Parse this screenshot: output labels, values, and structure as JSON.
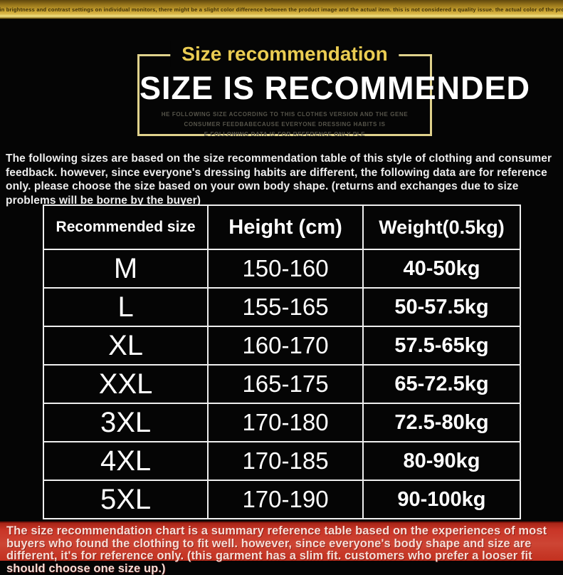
{
  "top_banner": {
    "disclaimer": "Due to variations in brightness and contrast settings on individual monitors, there might be a slight color difference between the product image and the actual item. this is not considered a quality issue. the actual color of the product shall prevail"
  },
  "header": {
    "badge_title": "Size recommendation",
    "main_title": "SIZE IS RECOMMENDED",
    "caption_lines": [
      "HE FOLLOWING SIZE ACCORDING TO THIS CLOTHES VERSION AND THE GENE",
      "CONSUMER FEEDBABECAUSE EVERYONE DRESSING HABITS IS",
      "E FOLLOWING DATA IS FOR REFERENCE ONLY PLE"
    ]
  },
  "intro_paragraph": "The following sizes are based on the size recommendation table of this style of clothing and consumer feedback. however, since everyone's dressing habits are different, the following data are for reference only. please choose the size based on your own body shape. (returns and exchanges due to size problems will be borne by the buyer)",
  "size_table": {
    "columns": [
      "Recommended size",
      "Height (cm)",
      "Weight(0.5kg)"
    ],
    "rows": [
      {
        "size": "M",
        "height": "150-160",
        "weight": "40-50kg"
      },
      {
        "size": "L",
        "height": "155-165",
        "weight": "50-57.5kg"
      },
      {
        "size": "XL",
        "height": "160-170",
        "weight": "57.5-65kg"
      },
      {
        "size": "XXL",
        "height": "165-175",
        "weight": "65-72.5kg"
      },
      {
        "size": "3XL",
        "height": "170-180",
        "weight": "72.5-80kg"
      },
      {
        "size": "4XL",
        "height": "170-185",
        "weight": "80-90kg"
      },
      {
        "size": "5XL",
        "height": "170-190",
        "weight": "90-100kg"
      }
    ]
  },
  "footer_banner": {
    "note": "The size recommendation chart is a summary reference table based on the experiences of most buyers who found the clothing to fit well. however, since everyone's body shape and size are different, it's for reference only. (this garment has a slim fit. customers who prefer a looser fit should choose one size up.)"
  },
  "colors": {
    "gold_title_text": "#eacc52",
    "frame_border_gold": "#e0d28c",
    "top_banner_gold": "#d9b545",
    "table_border": "#efefef",
    "table_text": "#ffffff",
    "red_banner_background": "#c93527",
    "red_banner_text": "#f6ddd6",
    "page_background": "#050505"
  }
}
